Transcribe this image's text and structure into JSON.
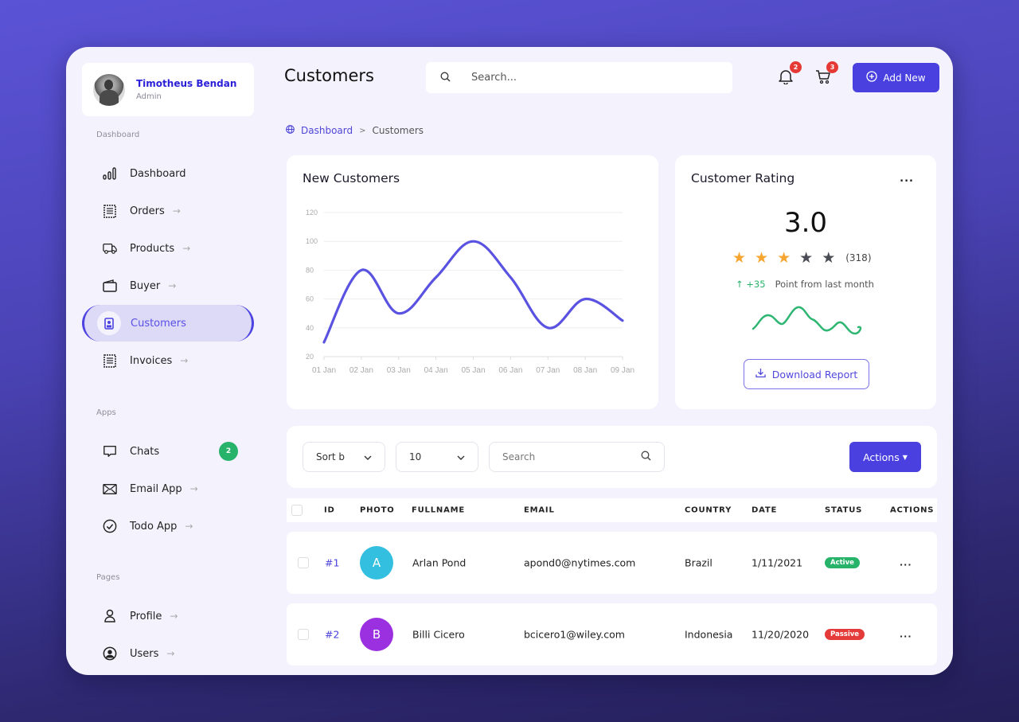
{
  "user": {
    "name": "Timotheus Bendan",
    "role": "Admin"
  },
  "sidebar": {
    "sections": [
      {
        "label": "Dashboard"
      },
      {
        "label": "Apps"
      },
      {
        "label": "Pages"
      }
    ],
    "items": [
      {
        "label": "Dashboard",
        "icon": "bar-chart-icon",
        "arrow": ""
      },
      {
        "label": "Orders",
        "icon": "receipt-icon",
        "arrow": "→"
      },
      {
        "label": "Products",
        "icon": "truck-icon",
        "arrow": "→"
      },
      {
        "label": "Buyer",
        "icon": "wallet-icon",
        "arrow": "→"
      },
      {
        "label": "Customers",
        "icon": "id-badge-icon",
        "arrow": "",
        "active": true
      },
      {
        "label": "Invoices",
        "icon": "invoice-icon",
        "arrow": "→"
      },
      {
        "label": "Chats",
        "icon": "chat-icon",
        "badge": "2"
      },
      {
        "label": "Email App",
        "icon": "mail-icon",
        "arrow": "→"
      },
      {
        "label": "Todo App",
        "icon": "check-circle-icon",
        "arrow": "→"
      },
      {
        "label": "Profile",
        "icon": "user-icon",
        "arrow": "→"
      },
      {
        "label": "Users",
        "icon": "user-circle-icon",
        "arrow": "→"
      }
    ]
  },
  "header": {
    "title": "Customers",
    "search_placeholder": "Search...",
    "notifications_count": "2",
    "cart_count": "3",
    "add_new_label": "Add New"
  },
  "breadcrumb": {
    "root": "Dashboard",
    "separator": ">",
    "current": "Customers"
  },
  "new_customers_card": {
    "title": "New Customers"
  },
  "chart_data": {
    "type": "line",
    "title": "New Customers",
    "categories": [
      "01 Jan",
      "02 Jan",
      "03 Jan",
      "04 Jan",
      "05 Jan",
      "06 Jan",
      "07 Jan",
      "08 Jan",
      "09 Jan"
    ],
    "values": [
      30,
      80,
      50,
      75,
      100,
      75,
      40,
      60,
      45
    ],
    "yticks": [
      "120",
      "100",
      "80",
      "60",
      "40",
      "20"
    ],
    "ylim": [
      20,
      120
    ],
    "xlabel": "",
    "ylabel": "",
    "grid": true,
    "color": "#5a52e0"
  },
  "rating_card": {
    "title": "Customer Rating",
    "menu": "...",
    "value": "3.0",
    "stars_filled": 3,
    "stars_total": 5,
    "count": "(318)",
    "trend_arrow": "↑",
    "trend_value": "+35",
    "trend_text": "Point from last month",
    "download_label": "Download Report",
    "sparkline_color": "#2fb672"
  },
  "table_controls": {
    "sort_label": "Sort b",
    "page_size": "10",
    "search_placeholder": "Search",
    "actions_label": "Actions"
  },
  "table": {
    "columns": [
      "ID",
      "PHOTO",
      "FULLNAME",
      "EMAIL",
      "COUNTRY",
      "DATE",
      "STATUS",
      "ACTIONS"
    ],
    "rows": [
      {
        "id": "#1",
        "initial": "A",
        "avatar_color": "#33c0e0",
        "fullname": "Arlan Pond",
        "email": "apond0@nytimes.com",
        "country": "Brazil",
        "date": "1/11/2021",
        "status": "Active",
        "status_color": "#27b36a",
        "actions": "..."
      },
      {
        "id": "#2",
        "initial": "B",
        "avatar_color": "#9b30e0",
        "fullname": "Billi Cicero",
        "email": "bcicero1@wiley.com",
        "country": "Indonesia",
        "date": "11/20/2020",
        "status": "Passive",
        "status_color": "#e53a3a",
        "actions": "..."
      }
    ]
  },
  "colors": {
    "accent": "#4a40e0",
    "success": "#27b36a",
    "danger": "#e53a3a",
    "star": "#f7a531",
    "star_empty": "#4a4d55"
  }
}
